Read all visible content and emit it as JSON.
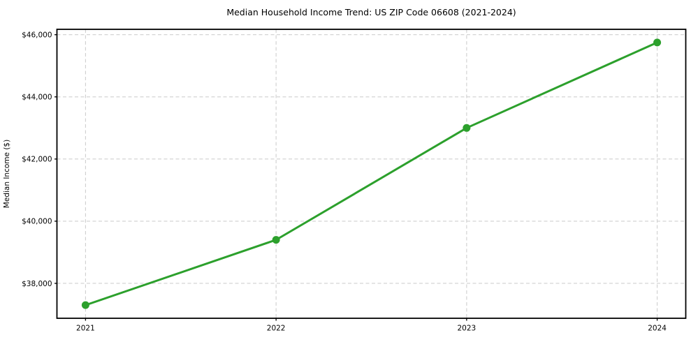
{
  "chart_data": {
    "type": "line",
    "title": "Median Household Income Trend: US ZIP Code 06608 (2021-2024)",
    "xlabel": "",
    "ylabel": "Median Income ($)",
    "x": [
      2021,
      2022,
      2023,
      2024
    ],
    "x_tick_labels": [
      "2021",
      "2022",
      "2023",
      "2024"
    ],
    "series": [
      {
        "name": "Median Household Income",
        "values": [
          37300,
          39400,
          43000,
          45750
        ]
      }
    ],
    "y_ticks": [
      38000,
      40000,
      42000,
      44000,
      46000
    ],
    "y_tick_labels": [
      "$38,000",
      "$40,000",
      "$42,000",
      "$44,000",
      "$46,000"
    ],
    "xlim": [
      2020.85,
      2024.15
    ],
    "ylim": [
      36877,
      46173
    ],
    "grid": true,
    "grid_style": "dashed",
    "legend": false,
    "marker": "circle",
    "line_color": "#2ca02c",
    "grid_color": "#cfcfcf",
    "axis_color": "#000000",
    "text_color": "#000000",
    "background_color": "#ffffff"
  }
}
